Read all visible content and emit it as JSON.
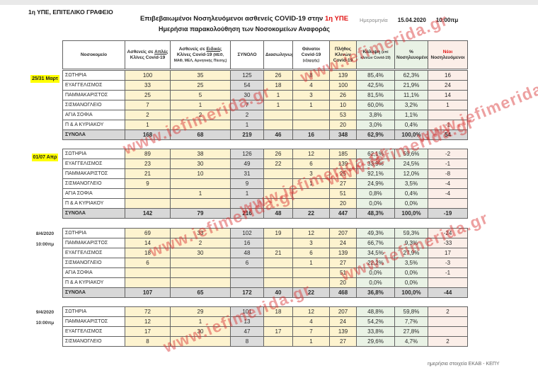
{
  "page": {
    "office_label": "1η ΥΠΕ, ΕΠΙΤΕΛΙΚΟ ΓΡΑΦΕΙΟ",
    "title_main": "Επιβεβαιωμένοι Νοσηλευόμενοι ασθενείς COVID-19 στην",
    "title_highlight": "1η ΥΠΕ",
    "subtitle": "Ημερήσια παρακολούθηση  των Νοσοκομείων Αναφοράς",
    "date_label": "Ημερομηνία",
    "date_value": "15.04.2020",
    "time_value": "10:00πμ",
    "footer_note": "ημερήσια στοιχεία ΕΚΑΒ - ΚΕΠΥ",
    "watermark": "www.iefimerida.gr"
  },
  "colors": {
    "accent_red": "#e01010",
    "label_highlight": "#ffff00",
    "cell_yellow": "#fdf3cf",
    "cell_gray": "#dcdcdc",
    "cell_green": "#e9f2e5",
    "cell_pink": "#fbeee8",
    "watermark_red": "#d82c2c"
  },
  "table": {
    "headers": [
      {
        "label": "Νοσοκομείο"
      },
      {
        "pre": "Ασθενείς σε ",
        "u": "Απλές",
        "post": " Κλίνες Covid-19"
      },
      {
        "pre": "Ασθενείς σε ",
        "u": "Ειδικές",
        "post": " Κλίνες Covid-19 ",
        "sub": "(ΜΕΘ, ΜΑΦ, ΜΕΛ, Αρνητικής Πίεσης)"
      },
      {
        "label": "ΣΥΝΟΛΟ"
      },
      {
        "label": "Διασωληνωμένοι"
      },
      {
        "label": "Θάνατοι Covid-19 ",
        "sub": "(εξαρχής)"
      },
      {
        "label": "Πλήθος Κλινών Covid-19"
      },
      {
        "label": "Κάλυψη ",
        "sub": "(επί κλινών Covid-19)"
      },
      {
        "label": "% Νοσηλευομένων"
      },
      {
        "red": "Νέοι",
        "label": " Νοσηλευόμενοι"
      }
    ],
    "blocks": [
      {
        "label": {
          "lines": [
            "25/31 Μαρτ"
          ],
          "highlight": true
        },
        "rows": [
          [
            "ΣΩΤΗΡΙΑ",
            "100",
            "35",
            "125",
            "26",
            "8",
            "139",
            "85,4%",
            "62,3%",
            "16"
          ],
          [
            "ΕΥΑΓΓΕΛΙΣΜΟΣ",
            "33",
            "25",
            "54",
            "18",
            "4",
            "100",
            "42,5%",
            "21,9%",
            "24"
          ],
          [
            "ΠΑΜΜΑΚΑΡΙΣΤΟΣ",
            "25",
            "5",
            "30",
            "1",
            "3",
            "26",
            "81,5%",
            "11,1%",
            "14"
          ],
          [
            "ΣΙΣΜΑΝΟΓΛΕΙΟ",
            "7",
            "1",
            "7",
            "1",
            "1",
            "10",
            "60,0%",
            "3,2%",
            "1"
          ],
          [
            "ΑΓΙΑ ΣΟΦΙΑ",
            "2",
            "2",
            "2",
            "",
            "",
            "53",
            "3,8%",
            "1,1%",
            ""
          ],
          [
            "Π & Α ΚΥΡΙΑΚΟΥ",
            "1",
            "",
            "1",
            "",
            "",
            "20",
            "3,0%",
            "0,4%",
            "-1"
          ]
        ],
        "totals": [
          "ΣΥΝΟΛΑ",
          "168",
          "68",
          "219",
          "46",
          "16",
          "348",
          "62,9%",
          "100,0%",
          "54"
        ]
      },
      {
        "label": {
          "lines": [
            "01/07 Απρ"
          ],
          "highlight": true
        },
        "rows": [
          [
            "ΣΩΤΗΡΙΑ",
            "89",
            "38",
            "126",
            "26",
            "12",
            "185",
            "62,1%",
            "59,6%",
            "-2"
          ],
          [
            "ΕΥΑΓΓΕΛΙΣΜΟΣ",
            "23",
            "30",
            "49",
            "22",
            "6",
            "139",
            "33,9%",
            "24,5%",
            "-1"
          ],
          [
            "ΠΑΜΜΑΚΑΡΙΣΤΟΣ",
            "21",
            "10",
            "31",
            "",
            "3",
            "25",
            "92,1%",
            "12,0%",
            "-8"
          ],
          [
            "ΣΙΣΜΑΝΟΓΛΕΙΟ",
            "9",
            "",
            "9",
            "",
            "1",
            "27",
            "24,9%",
            "3,5%",
            "-4"
          ],
          [
            "ΑΓΙΑ ΣΟΦΙΑ",
            "",
            "1",
            "1",
            "",
            "",
            "51",
            "0,8%",
            "0,4%",
            "-4"
          ],
          [
            "Π & Α ΚΥΡΙΑΚΟΥ",
            "",
            "",
            "",
            "",
            "",
            "20",
            "0,0%",
            "0,0%",
            ""
          ]
        ],
        "totals": [
          "ΣΥΝΟΛΑ",
          "142",
          "79",
          "216",
          "48",
          "22",
          "447",
          "48,3%",
          "100,0%",
          "-19"
        ]
      },
      {
        "label": {
          "lines": [
            "8/4/2020",
            "10:00πμ"
          ],
          "highlight": false
        },
        "rows": [
          [
            "ΣΩΤΗΡΙΑ",
            "69",
            "33",
            "102",
            "19",
            "12",
            "207",
            "49,3%",
            "59,3%",
            "-24"
          ],
          [
            "ΠΑΜΜΑΚΑΡΙΣΤΟΣ",
            "14",
            "2",
            "16",
            "",
            "3",
            "24",
            "66,7%",
            "9,3%",
            "-33"
          ],
          [
            "ΕΥΑΓΓΕΛΙΣΜΟΣ",
            "18",
            "30",
            "48",
            "21",
            "6",
            "139",
            "34,5%",
            "27,9%",
            "17"
          ],
          [
            "ΣΙΣΜΑΝΟΓΛΕΙΟ",
            "6",
            "",
            "6",
            "",
            "1",
            "27",
            "22,2%",
            "3,5%",
            "-3"
          ],
          [
            "ΑΓΙΑ ΣΟΦΙΑ",
            "",
            "",
            "",
            "",
            "",
            "51",
            "0,0%",
            "0,0%",
            "-1"
          ],
          [
            "Π & Α ΚΥΡΙΑΚΟΥ",
            "",
            "",
            "",
            "",
            "",
            "20",
            "0,0%",
            "0,0%",
            ""
          ]
        ],
        "totals": [
          "ΣΥΝΟΛΑ",
          "107",
          "65",
          "172",
          "40",
          "22",
          "468",
          "36,8%",
          "100,0%",
          "-44"
        ]
      },
      {
        "label": {
          "lines": [
            "9/4/2020",
            "10:00πμ"
          ],
          "highlight": false
        },
        "rows": [
          [
            "ΣΩΤΗΡΙΑ",
            "72",
            "29",
            "101",
            "18",
            "12",
            "207",
            "48,8%",
            "59,8%",
            "2"
          ],
          [
            "ΠΑΜΜΑΚΑΡΙΣΤΟΣ",
            "12",
            "1",
            "13",
            "",
            "4",
            "24",
            "54,2%",
            "7,7%",
            ""
          ],
          [
            "ΕΥΑΓΓΕΛΙΣΜΟΣ",
            "17",
            "30",
            "47",
            "17",
            "7",
            "139",
            "33,8%",
            "27,8%",
            ""
          ],
          [
            "ΣΙΣΜΑΝΟΓΛΕΙΟ",
            "8",
            "",
            "8",
            "",
            "1",
            "27",
            "29,6%",
            "4,7%",
            "2"
          ]
        ],
        "totals": null
      }
    ]
  }
}
